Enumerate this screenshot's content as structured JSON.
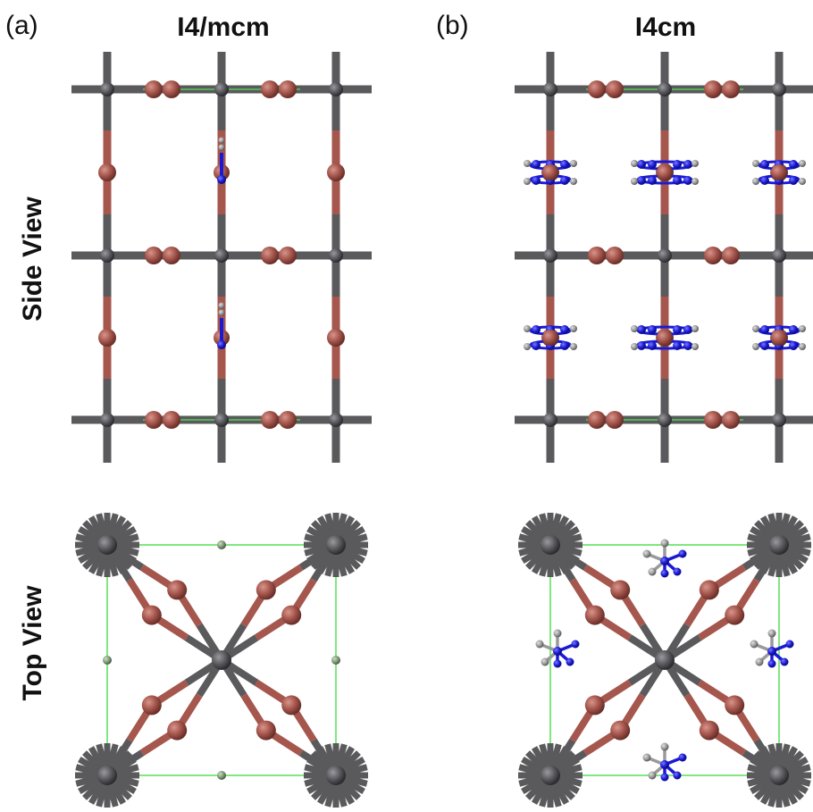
{
  "panels": {
    "a": {
      "letter": "(a)",
      "space_group": "I4/mcm"
    },
    "b": {
      "letter": "(b)",
      "space_group": "I4cm"
    }
  },
  "row_labels": {
    "side": "Side View",
    "top": "Top View"
  },
  "colors": {
    "metal": "#5a5a5c",
    "metal_dark": "#3d3d40",
    "halide": "#a5564d",
    "halide_highlight": "#c77c70",
    "nitrogen": "#1a1ad4",
    "carbon_hydrogen": "#9a9a9a",
    "cell_edge": "#55e055",
    "background": "#ffffff"
  }
}
